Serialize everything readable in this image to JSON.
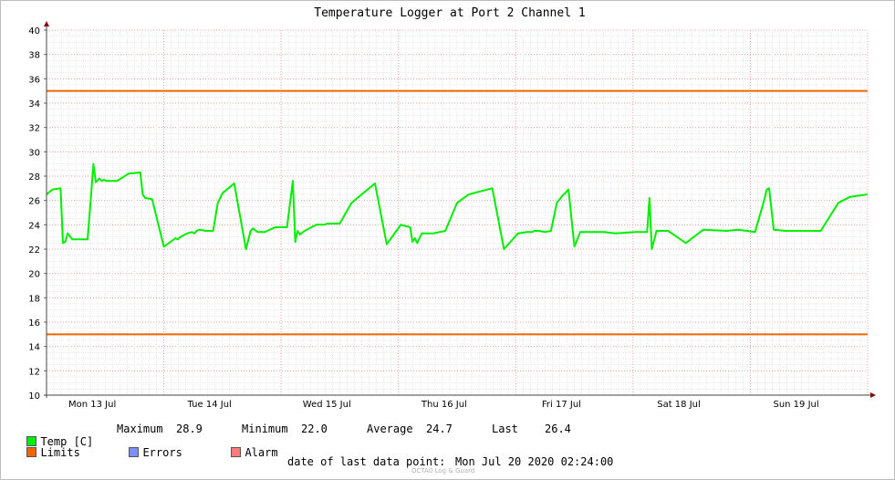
{
  "chart_data": {
    "type": "line",
    "title": "Temperature Logger at Port 2 Channel 1",
    "ylim": [
      10,
      40
    ],
    "y_ticks": [
      10,
      12,
      14,
      16,
      18,
      20,
      22,
      24,
      26,
      28,
      30,
      32,
      34,
      36,
      38,
      40
    ],
    "x_labels": [
      "Mon 13 Jul",
      "Tue 14 Jul",
      "Wed 15 Jul",
      "Thu 16 Jul",
      "Fri 17 Jul",
      "Sat 18 Jul",
      "Sun 19 Jul"
    ],
    "xlim": [
      0,
      7
    ],
    "grid": true,
    "series": [
      {
        "name": "Temp [C]",
        "color": "#00ee00",
        "x": [
          0.0,
          0.05,
          0.12,
          0.14,
          0.16,
          0.18,
          0.22,
          0.26,
          0.3,
          0.35,
          0.38,
          0.4,
          0.42,
          0.45,
          0.47,
          0.49,
          0.51,
          0.55,
          0.6,
          0.7,
          0.8,
          0.82,
          0.84,
          0.9,
          1.0,
          1.1,
          1.12,
          1.14,
          1.2,
          1.24,
          1.26,
          1.28,
          1.3,
          1.36,
          1.42,
          1.46,
          1.5,
          1.55,
          1.6,
          1.7,
          1.74,
          1.76,
          1.8,
          1.86,
          1.95,
          2.05,
          2.1,
          2.12,
          2.14,
          2.16,
          2.2,
          2.3,
          2.36,
          2.4,
          2.5,
          2.6,
          2.8,
          2.9,
          3.02,
          3.1,
          3.12,
          3.14,
          3.16,
          3.2,
          3.3,
          3.4,
          3.5,
          3.6,
          3.8,
          3.9,
          4.02,
          4.1,
          4.12,
          4.14,
          4.16,
          4.2,
          4.25,
          4.3,
          4.35,
          4.4,
          4.45,
          4.5,
          4.55,
          4.6,
          4.75,
          4.85,
          5.02,
          5.12,
          5.14,
          5.16,
          5.2,
          5.3,
          5.45,
          5.6,
          5.8,
          5.9,
          6.04,
          6.12,
          6.14,
          6.16,
          6.2,
          6.3,
          6.45,
          6.6,
          6.75,
          6.85,
          7.0
        ],
        "values": [
          26.5,
          26.9,
          27.0,
          22.5,
          22.6,
          23.3,
          22.8,
          22.8,
          22.8,
          22.8,
          26.5,
          29.0,
          27.5,
          27.8,
          27.6,
          27.7,
          27.6,
          27.6,
          27.6,
          28.2,
          28.3,
          26.5,
          26.2,
          26.1,
          22.2,
          22.9,
          22.8,
          23.0,
          23.3,
          23.4,
          23.3,
          23.5,
          23.6,
          23.5,
          23.5,
          25.8,
          26.6,
          27.0,
          27.4,
          22.0,
          23.5,
          23.7,
          23.4,
          23.4,
          23.8,
          23.8,
          27.6,
          22.6,
          23.5,
          23.2,
          23.5,
          24.0,
          24.0,
          24.1,
          24.1,
          25.8,
          27.4,
          22.4,
          24.0,
          23.8,
          22.6,
          22.9,
          22.5,
          23.3,
          23.3,
          23.5,
          25.8,
          26.5,
          27.0,
          22.0,
          23.3,
          23.4,
          23.4,
          23.4,
          23.5,
          23.5,
          23.4,
          23.5,
          25.8,
          26.4,
          26.9,
          22.2,
          23.4,
          23.4,
          23.4,
          23.3,
          23.4,
          23.4,
          26.2,
          22.0,
          23.5,
          23.5,
          22.5,
          23.6,
          23.5,
          23.6,
          23.4,
          26.1,
          26.9,
          27.0,
          23.6,
          23.5,
          23.5,
          23.5,
          25.8,
          26.3,
          26.5
        ]
      },
      {
        "name": "Limits",
        "color": "#ee6600",
        "values_high": 35,
        "values_low": 15
      }
    ],
    "legend": [
      {
        "name": "Temp [C]",
        "color": "#00ee00"
      },
      {
        "name": "Limits",
        "color": "#ee6600"
      },
      {
        "name": "Errors",
        "color": "#7b8fff"
      },
      {
        "name": "Alarm",
        "color": "#ff7b7b"
      }
    ],
    "stats": {
      "maximum_label": "Maximum",
      "maximum": "28.9",
      "minimum_label": "Minimum",
      "minimum": "22.0",
      "average_label": "Average",
      "average": "24.7",
      "last_label": "Last",
      "last": "26.4"
    }
  },
  "footer": {
    "last_point_label": "date of last data point:",
    "last_point_value": "Mon Jul 20 2020 02:24:00",
    "watermark": "OCTA0 Log & Guard"
  }
}
